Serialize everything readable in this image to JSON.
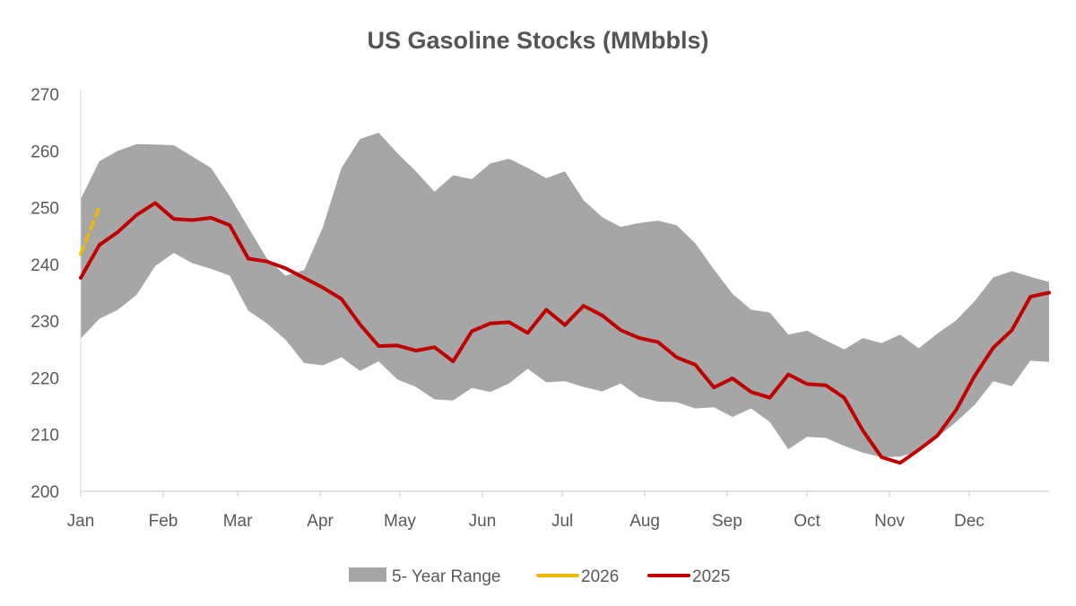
{
  "chart_data": {
    "type": "area",
    "title": "US Gasoline Stocks (MMbbls)",
    "xlabel": "",
    "ylabel": "",
    "ylim": [
      200,
      270
    ],
    "yticks": [
      200,
      210,
      220,
      230,
      240,
      250,
      260,
      270
    ],
    "xlim": [
      1,
      53
    ],
    "x_tick_positions": [
      1,
      5.43,
      9.43,
      13.86,
      18.14,
      22.57,
      26.86,
      31.29,
      35.71,
      40,
      44.43,
      48.71
    ],
    "x_tick_labels": [
      "Jan",
      "Feb",
      "Mar",
      "Apr",
      "May",
      "Jun",
      "Jul",
      "Aug",
      "Sep",
      "Oct",
      "Nov",
      "Dec"
    ],
    "grid": false,
    "legend_position": "bottom",
    "x_unit": "week of year",
    "colors": {
      "range": "#a6a6a6",
      "s2026": "#f2b800",
      "s2025": "#c00000",
      "text": "#595959",
      "axis": "#d9d9d9"
    },
    "range_series": {
      "name": "5- Year Range",
      "x": [
        1,
        2,
        3,
        4,
        5,
        6,
        7,
        8,
        9,
        10,
        11,
        12,
        13,
        14,
        15,
        16,
        17,
        18,
        19,
        20,
        21,
        22,
        23,
        24,
        25,
        26,
        27,
        28,
        29,
        30,
        31,
        32,
        33,
        34,
        35,
        36,
        37,
        38,
        39,
        40,
        41,
        42,
        43,
        44,
        45,
        46,
        47,
        48,
        49,
        50,
        51,
        52,
        53
      ],
      "high": [
        251.5,
        258.2,
        260,
        261.2,
        261.1,
        261,
        259,
        257,
        252,
        246.5,
        241,
        238,
        239,
        246.5,
        257,
        262.1,
        263.2,
        259.6,
        256.4,
        252.8,
        255.7,
        255,
        257.8,
        258.6,
        257,
        255.2,
        256.4,
        251.3,
        248.3,
        246.6,
        247.3,
        247.7,
        246.9,
        243.7,
        239.1,
        234.8,
        232,
        231.5,
        227.6,
        228.3,
        226.6,
        225,
        227,
        226.1,
        227.6,
        225.2,
        227.8,
        230.1,
        233.5,
        237.7,
        238.8,
        237.8,
        236.9
      ],
      "low": [
        226.9,
        230.4,
        232,
        234.6,
        239.7,
        242,
        240.2,
        239.2,
        238,
        231.8,
        229.6,
        226.7,
        222.6,
        222.2,
        223.6,
        221.2,
        222.9,
        219.7,
        218.4,
        216.2,
        216,
        218.2,
        217.5,
        219,
        221.6,
        219.2,
        219.4,
        218.4,
        217.6,
        219,
        216.6,
        215.8,
        215.7,
        214.6,
        214.8,
        213.1,
        214.6,
        212.2,
        207.4,
        209.6,
        209.4,
        208,
        206.8,
        206,
        206.1,
        207,
        209.5,
        212.2,
        215.2,
        219.4,
        218.5,
        223,
        222.8
      ]
    },
    "series": [
      {
        "name": "2026",
        "x": [
          1,
          2
        ],
        "values": [
          241.8,
          250.1
        ]
      },
      {
        "name": "2025",
        "x": [
          1,
          2,
          3,
          4,
          5,
          6,
          7,
          8,
          9,
          10,
          11,
          12,
          13,
          14,
          15,
          16,
          17,
          18,
          19,
          20,
          21,
          22,
          23,
          24,
          25,
          26,
          27,
          28,
          29,
          30,
          31,
          32,
          33,
          34,
          35,
          36,
          37,
          38,
          39,
          40,
          41,
          42,
          43,
          44,
          45,
          46,
          47,
          48,
          49,
          50,
          51,
          52,
          53
        ],
        "values": [
          237.6,
          243.4,
          245.7,
          248.7,
          250.8,
          248,
          247.8,
          248.2,
          246.9,
          241,
          240.5,
          239.3,
          237.6,
          235.9,
          233.9,
          229.4,
          225.6,
          225.7,
          224.8,
          225.4,
          222.9,
          228.2,
          229.6,
          229.8,
          227.9,
          232,
          229.3,
          232.7,
          231,
          228.4,
          227,
          226.3,
          223.6,
          222.3,
          218.3,
          219.9,
          217.5,
          216.5,
          220.6,
          218.9,
          218.7,
          216.5,
          210.7,
          206,
          205,
          207.3,
          209.8,
          214.3,
          220.3,
          225.3,
          228.4,
          234.3,
          235
        ]
      }
    ],
    "legend": [
      {
        "label": "5- Year Range",
        "kind": "range"
      },
      {
        "label": "2026",
        "kind": "s2026"
      },
      {
        "label": "2025",
        "kind": "s2025"
      }
    ]
  }
}
